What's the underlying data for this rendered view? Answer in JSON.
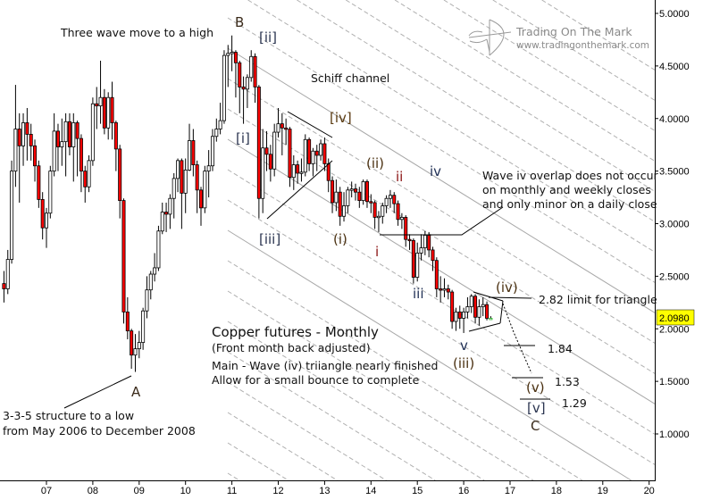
{
  "chart_data": {
    "type": "candlestick",
    "title": "Copper futures - Monthly",
    "subtitle": "(Front month back adjusted)",
    "interval": "monthly",
    "start_month": "2006-02",
    "candle_format": [
      "open",
      "high",
      "low",
      "close"
    ],
    "candles": [
      [
        2.43,
        2.55,
        2.25,
        2.38
      ],
      [
        2.38,
        2.75,
        2.33,
        2.66
      ],
      [
        2.66,
        3.6,
        2.62,
        3.5
      ],
      [
        3.5,
        4.32,
        3.35,
        3.9
      ],
      [
        3.9,
        4.05,
        3.2,
        3.74
      ],
      [
        3.74,
        4.05,
        3.55,
        3.96
      ],
      [
        3.96,
        4.1,
        3.6,
        3.85
      ],
      [
        3.85,
        3.95,
        3.6,
        3.74
      ],
      [
        3.74,
        3.8,
        3.4,
        3.55
      ],
      [
        3.55,
        3.6,
        3.15,
        3.23
      ],
      [
        3.23,
        3.3,
        2.85,
        2.96
      ],
      [
        2.96,
        3.15,
        2.77,
        3.1
      ],
      [
        3.1,
        3.55,
        3.05,
        3.5
      ],
      [
        3.5,
        4.05,
        3.45,
        3.88
      ],
      [
        3.88,
        3.95,
        3.5,
        3.73
      ],
      [
        3.73,
        4.0,
        3.55,
        3.78
      ],
      [
        3.78,
        4.05,
        3.45,
        3.97
      ],
      [
        3.97,
        4.05,
        3.65,
        3.73
      ],
      [
        3.73,
        4.05,
        3.4,
        3.96
      ],
      [
        3.96,
        3.98,
        3.45,
        3.81
      ],
      [
        3.81,
        3.85,
        3.3,
        3.5
      ],
      [
        3.5,
        3.55,
        3.2,
        3.35
      ],
      [
        3.35,
        3.65,
        3.3,
        3.6
      ],
      [
        3.6,
        4.2,
        3.55,
        4.14
      ],
      [
        4.14,
        4.3,
        3.9,
        4.12
      ],
      [
        4.12,
        4.55,
        3.95,
        4.2
      ],
      [
        4.2,
        4.28,
        3.85,
        3.91
      ],
      [
        3.91,
        4.25,
        3.8,
        4.2
      ],
      [
        4.2,
        4.35,
        3.8,
        3.96
      ],
      [
        3.96,
        3.98,
        3.5,
        3.71
      ],
      [
        3.71,
        3.75,
        3.05,
        3.22
      ],
      [
        3.22,
        3.24,
        2.05,
        2.16
      ],
      [
        2.16,
        2.3,
        1.9,
        1.98
      ],
      [
        1.98,
        2.0,
        1.62,
        1.75
      ],
      [
        1.75,
        1.95,
        1.59,
        1.81
      ],
      [
        1.81,
        1.98,
        1.72,
        1.87
      ],
      [
        1.87,
        2.2,
        1.8,
        2.17
      ],
      [
        2.17,
        2.5,
        2.1,
        2.37
      ],
      [
        2.37,
        2.55,
        2.28,
        2.52
      ],
      [
        2.52,
        2.72,
        2.45,
        2.58
      ],
      [
        2.58,
        2.98,
        2.55,
        2.93
      ],
      [
        2.93,
        3.2,
        2.9,
        3.11
      ],
      [
        3.11,
        3.2,
        2.92,
        3.09
      ],
      [
        3.09,
        3.28,
        2.95,
        3.24
      ],
      [
        3.24,
        3.48,
        3.05,
        3.43
      ],
      [
        3.43,
        3.62,
        3.3,
        3.6
      ],
      [
        3.6,
        3.62,
        2.95,
        3.29
      ],
      [
        3.29,
        3.62,
        3.1,
        3.51
      ],
      [
        3.51,
        3.95,
        3.5,
        3.79
      ],
      [
        3.79,
        3.9,
        3.45,
        3.56
      ],
      [
        3.56,
        3.6,
        3.1,
        3.32
      ],
      [
        3.32,
        3.35,
        2.98,
        3.15
      ],
      [
        3.15,
        3.55,
        3.1,
        3.5
      ],
      [
        3.5,
        3.7,
        3.25,
        3.55
      ],
      [
        3.55,
        3.9,
        3.5,
        3.83
      ],
      [
        3.83,
        4.0,
        3.78,
        3.9
      ],
      [
        3.9,
        4.15,
        3.85,
        3.98
      ],
      [
        3.98,
        4.65,
        3.95,
        4.6
      ],
      [
        4.6,
        4.7,
        4.3,
        4.62
      ],
      [
        4.62,
        4.79,
        4.45,
        4.63
      ],
      [
        4.63,
        4.65,
        4.2,
        4.53
      ],
      [
        4.53,
        4.55,
        4.05,
        4.3
      ],
      [
        4.3,
        4.4,
        3.95,
        4.28
      ],
      [
        4.28,
        4.42,
        4.1,
        4.39
      ],
      [
        4.39,
        4.65,
        4.35,
        4.59
      ],
      [
        4.59,
        4.62,
        4.15,
        4.3
      ],
      [
        4.3,
        4.32,
        3.05,
        3.24
      ],
      [
        3.24,
        3.9,
        3.1,
        3.72
      ],
      [
        3.72,
        3.88,
        3.5,
        3.66
      ],
      [
        3.66,
        3.75,
        3.4,
        3.52
      ],
      [
        3.52,
        3.95,
        3.45,
        3.87
      ],
      [
        3.87,
        4.1,
        3.82,
        3.95
      ],
      [
        3.95,
        4.05,
        3.65,
        3.91
      ],
      [
        3.91,
        4.0,
        3.75,
        3.9
      ],
      [
        3.9,
        3.92,
        3.35,
        3.44
      ],
      [
        3.44,
        3.65,
        3.32,
        3.56
      ],
      [
        3.56,
        3.6,
        3.38,
        3.48
      ],
      [
        3.48,
        3.62,
        3.4,
        3.49
      ],
      [
        3.49,
        3.85,
        3.45,
        3.8
      ],
      [
        3.8,
        3.82,
        3.5,
        3.57
      ],
      [
        3.57,
        3.72,
        3.45,
        3.69
      ],
      [
        3.69,
        3.75,
        3.5,
        3.65
      ],
      [
        3.65,
        3.8,
        3.6,
        3.76
      ],
      [
        3.76,
        3.82,
        3.5,
        3.57
      ],
      [
        3.57,
        3.62,
        3.3,
        3.41
      ],
      [
        3.41,
        3.45,
        3.1,
        3.2
      ],
      [
        3.2,
        3.42,
        3.12,
        3.3
      ],
      [
        3.3,
        3.35,
        2.98,
        3.07
      ],
      [
        3.07,
        3.3,
        3.02,
        3.17
      ],
      [
        3.17,
        3.35,
        3.1,
        3.32
      ],
      [
        3.32,
        3.4,
        3.25,
        3.33
      ],
      [
        3.33,
        3.38,
        3.22,
        3.3
      ],
      [
        3.3,
        3.35,
        3.15,
        3.22
      ],
      [
        3.22,
        3.42,
        3.18,
        3.4
      ],
      [
        3.4,
        3.42,
        3.15,
        3.21
      ],
      [
        3.21,
        3.28,
        3.1,
        3.2
      ],
      [
        3.2,
        3.22,
        2.95,
        3.06
      ],
      [
        3.06,
        3.12,
        2.92,
        3.07
      ],
      [
        3.07,
        3.2,
        3.0,
        3.17
      ],
      [
        3.17,
        3.27,
        3.1,
        3.24
      ],
      [
        3.24,
        3.32,
        3.15,
        3.27
      ],
      [
        3.27,
        3.3,
        3.1,
        3.19
      ],
      [
        3.19,
        3.22,
        2.98,
        3.04
      ],
      [
        3.04,
        3.1,
        2.95,
        3.06
      ],
      [
        3.06,
        3.08,
        2.78,
        2.85
      ],
      [
        2.85,
        2.9,
        2.75,
        2.84
      ],
      [
        2.84,
        2.86,
        2.43,
        2.49
      ],
      [
        2.49,
        2.82,
        2.45,
        2.72
      ],
      [
        2.72,
        2.9,
        2.65,
        2.77
      ],
      [
        2.77,
        2.93,
        2.7,
        2.89
      ],
      [
        2.89,
        2.92,
        2.68,
        2.75
      ],
      [
        2.75,
        2.78,
        2.55,
        2.65
      ],
      [
        2.65,
        2.68,
        2.3,
        2.38
      ],
      [
        2.38,
        2.5,
        2.25,
        2.37
      ],
      [
        2.37,
        2.48,
        2.3,
        2.38
      ],
      [
        2.38,
        2.42,
        2.28,
        2.35
      ],
      [
        2.35,
        2.37,
        2.0,
        2.07
      ],
      [
        2.07,
        2.2,
        1.98,
        2.16
      ],
      [
        2.16,
        2.22,
        2.0,
        2.1
      ],
      [
        2.1,
        2.2,
        1.96,
        2.16
      ],
      [
        2.16,
        2.3,
        2.1,
        2.21
      ],
      [
        2.21,
        2.33,
        2.15,
        2.31
      ],
      [
        2.31,
        2.33,
        2.05,
        2.11
      ],
      [
        2.11,
        2.28,
        2.03,
        2.21
      ],
      [
        2.21,
        2.3,
        2.12,
        2.23
      ],
      [
        2.23,
        2.26,
        2.08,
        2.1
      ],
      [
        2.1,
        2.12,
        2.09,
        2.098
      ]
    ],
    "x_ticks": [
      "07",
      "08",
      "09",
      "10",
      "11",
      "12",
      "13",
      "14",
      "15",
      "16",
      "17",
      "18",
      "19",
      "20"
    ],
    "y_ticks": [
      "1.0000",
      "1.5000",
      "2.0000",
      "2.5000",
      "3.0000",
      "3.5000",
      "4.0000",
      "4.5000",
      "5.0000"
    ],
    "ylim": [
      0.6,
      5.13
    ],
    "y_scale": "linear",
    "grid": false,
    "current_price": "2.0980",
    "targets": {
      "limit": "2.82 limit for triangle",
      "t1": "1.84",
      "t2": "1.53",
      "t3": "1.29"
    },
    "colors": {
      "down_candle": "#ff0000",
      "up_candle": "#ffffff",
      "last_candle": "#22aa22",
      "channel": "#b0b0b0",
      "price_box": "#ffff00",
      "wave_label": "#2b3550",
      "minor_label": "#8b1414"
    },
    "annotations": {
      "three_wave": "Three wave move to a high",
      "schiff": "Schiff channel",
      "overlap": [
        "Wave iv overlap does not occur",
        "on monthly and weekly closes",
        "and only minor on a daily close"
      ],
      "structure": [
        "3-3-5 structure to a low",
        "from May 2006 to December 2008"
      ],
      "main": "Main - Wave (iv) triiangle nearly finished",
      "allow": "Allow for a small bounce to complete"
    },
    "wave_labels": {
      "A": "A",
      "B": "B",
      "C": "C",
      "p_i": "[i]",
      "p_ii": "[ii]",
      "p_iii": "[iii]",
      "p_iv": "[iv]",
      "p_v": "[v]",
      "i_i": "(i)",
      "i_ii": "(ii)",
      "i_iii": "(iii)",
      "i_iv": "(iv)",
      "i_v": "(v)",
      "m_i": "i",
      "m_ii": "ii",
      "m_iii": "iii",
      "m_iv": "iv",
      "m_v": "v"
    }
  },
  "logo": {
    "name": "Trading On The Mark",
    "url": "www.tradingonthemark.com",
    "icon": "archer-bow-icon"
  }
}
